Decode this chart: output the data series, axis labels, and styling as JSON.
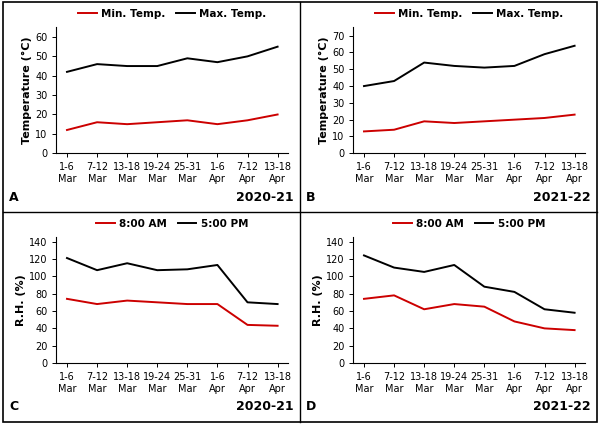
{
  "x_labels": [
    "1-6\nMar",
    "7-12\nMar",
    "13-18\nMar",
    "19-24\nMar",
    "25-31\nMar",
    "1-6\nApr",
    "7-12\nApr",
    "13-18\nApr"
  ],
  "panel_A": {
    "min_temp": [
      12,
      16,
      15,
      16,
      17,
      15,
      17,
      20
    ],
    "max_temp": [
      42,
      46,
      45,
      45,
      49,
      47,
      50,
      55
    ],
    "ylabel": "Temperature (°C)",
    "ylim": [
      0,
      65
    ],
    "yticks": [
      0,
      10,
      20,
      30,
      40,
      50,
      60
    ],
    "label": "A",
    "season": "2020-21"
  },
  "panel_B": {
    "min_temp": [
      13,
      14,
      19,
      18,
      19,
      20,
      21,
      23
    ],
    "max_temp": [
      40,
      43,
      54,
      52,
      51,
      52,
      59,
      64
    ],
    "ylabel": "Temperature (°C)",
    "ylim": [
      0,
      75
    ],
    "yticks": [
      0,
      10,
      20,
      30,
      40,
      50,
      60,
      70
    ],
    "label": "B",
    "season": "2021-22"
  },
  "panel_C": {
    "am": [
      74,
      68,
      72,
      70,
      68,
      68,
      44,
      43
    ],
    "pm": [
      121,
      107,
      115,
      107,
      108,
      113,
      70,
      68
    ],
    "ylabel": "R.H. (%)",
    "ylim": [
      0,
      145
    ],
    "yticks": [
      0,
      20,
      40,
      60,
      80,
      100,
      120,
      140
    ],
    "label": "C",
    "season": "2020-21"
  },
  "panel_D": {
    "am": [
      74,
      78,
      62,
      68,
      65,
      48,
      40,
      38
    ],
    "pm": [
      124,
      110,
      105,
      113,
      88,
      82,
      62,
      58
    ],
    "ylabel": "R.H. (%)",
    "ylim": [
      0,
      145
    ],
    "yticks": [
      0,
      20,
      40,
      60,
      80,
      100,
      120,
      140
    ],
    "label": "D",
    "season": "2021-22"
  },
  "line_red": "#cc0000",
  "line_black": "#000000",
  "legend_temp": [
    "Min. Temp.",
    "Max. Temp."
  ],
  "legend_rh": [
    "8:00 AM",
    "5:00 PM"
  ],
  "bg_color": "#ffffff",
  "font_size_tick": 7,
  "font_size_label": 8,
  "font_size_legend": 7.5,
  "font_size_season": 9,
  "font_size_panel": 9,
  "outer_border": true
}
